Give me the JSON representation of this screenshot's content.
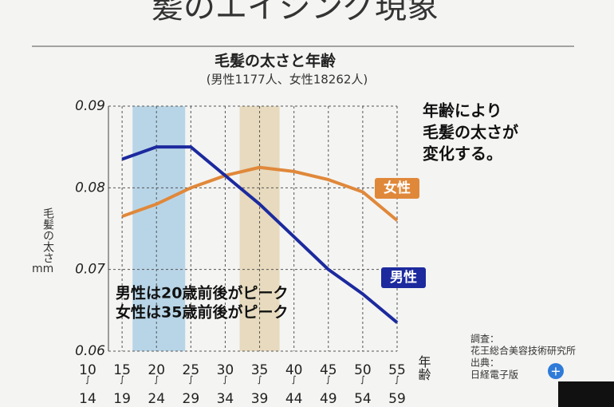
{
  "slide_title": "髪のエイジング現象",
  "chart_data": {
    "type": "line",
    "title": "毛髪の太さと年齢",
    "subtitle": "(男性1177人、女性18262人)",
    "y_label": "毛髪の太さ",
    "y_unit": "mm",
    "x_label": "年齢",
    "categories": [
      "10〜14",
      "15〜19",
      "20〜24",
      "25〜29",
      "30〜34",
      "35〜39",
      "40〜44",
      "45〜49",
      "50〜54",
      "55〜59"
    ],
    "series": [
      {
        "name": "女性",
        "color": "#e0883a",
        "values": [
          null,
          0.0765,
          0.078,
          0.08,
          0.0815,
          0.0825,
          0.082,
          0.081,
          0.0795,
          0.076
        ]
      },
      {
        "name": "男性",
        "color": "#1c2a9e",
        "values": [
          null,
          0.0835,
          0.085,
          0.085,
          0.0815,
          0.078,
          0.074,
          0.07,
          0.067,
          0.0635
        ]
      }
    ],
    "ylim": [
      0.06,
      0.09
    ],
    "yticks": [
      0.06,
      0.07,
      0.08,
      0.09
    ],
    "grid": true,
    "annotations": [
      "男性は20歳前後がピーク",
      "女性は35歳前後がピーク"
    ],
    "note": [
      "年齢により",
      "毛髪の太さが",
      "変化する。"
    ],
    "source": [
      "調査：",
      "花王総合美容技術研究所",
      "出典：",
      "日経電子版"
    ]
  }
}
